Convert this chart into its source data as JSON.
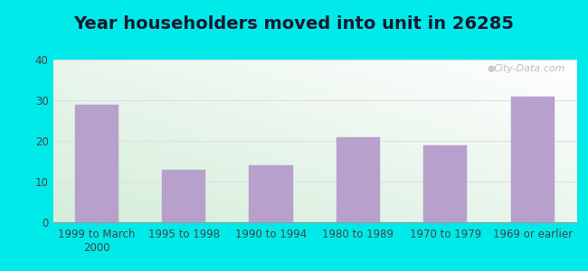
{
  "title": "Year householders moved into unit in 26285",
  "categories": [
    "1999 to March\n2000",
    "1995 to 1998",
    "1990 to 1994",
    "1980 to 1989",
    "1970 to 1979",
    "1969 or earlier"
  ],
  "values": [
    29,
    13,
    14,
    21,
    19,
    31
  ],
  "bar_color": "#b8a0cc",
  "bar_edge_color": "#b8a0cc",
  "ylim": [
    0,
    40
  ],
  "yticks": [
    0,
    10,
    20,
    30,
    40
  ],
  "outer_bg": "#00eaea",
  "title_fontsize": 14,
  "tick_fontsize": 8.5,
  "watermark": "City-Data.com",
  "grid_color": "#e8e8e8",
  "bar_width": 0.5
}
